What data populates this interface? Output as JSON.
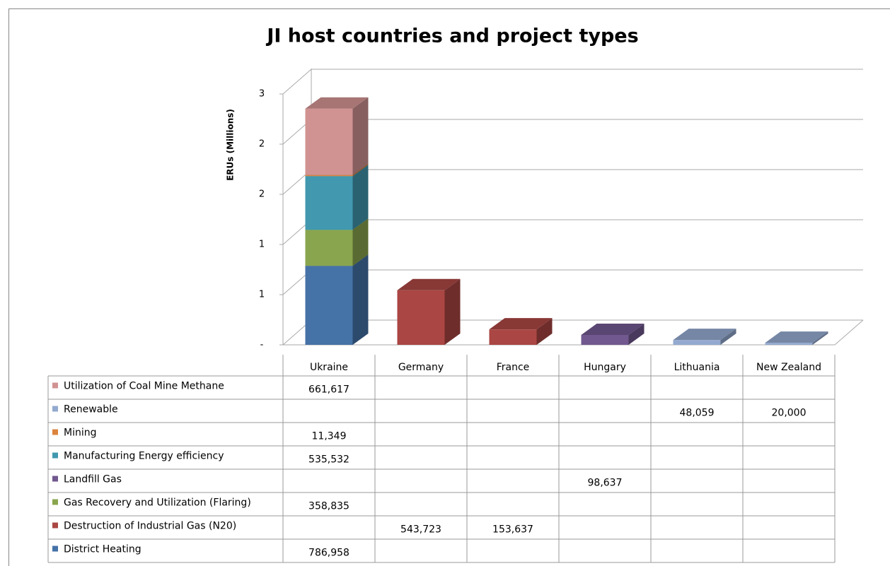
{
  "chart_data": {
    "type": "bar3d_stacked",
    "title": "JI host countries and project types",
    "y_label": "ERUs (Millions)",
    "categories": [
      "Ukraine",
      "Germany",
      "France",
      "Hungary",
      "Lithuania",
      "New Zealand"
    ],
    "ylim": [
      0,
      2.5
    ],
    "yticks": [
      {
        "value": 0,
        "label": "-"
      },
      {
        "value": 0.5,
        "label": "1"
      },
      {
        "value": 1,
        "label": "1"
      },
      {
        "value": 1.5,
        "label": "2"
      },
      {
        "value": 2,
        "label": "2"
      },
      {
        "value": 2.5,
        "label": "3"
      }
    ],
    "grid": true,
    "series": [
      {
        "name": "District Heating",
        "color": "#4572a7",
        "values": [
          0.786958,
          null,
          null,
          null,
          null,
          null
        ],
        "value_labels": [
          "786,958",
          null,
          null,
          null,
          null,
          null
        ]
      },
      {
        "name": "Destruction of Industrial Gas (N20)",
        "color": "#aa4643",
        "values": [
          null,
          0.543723,
          0.153637,
          null,
          null,
          null
        ],
        "value_labels": [
          null,
          "543,723",
          "153,637",
          null,
          null,
          null
        ]
      },
      {
        "name": "Gas Recovery and Utilization  (Flaring)",
        "color": "#89a54e",
        "values": [
          0.358835,
          null,
          null,
          null,
          null,
          null
        ],
        "value_labels": [
          "358,835",
          null,
          null,
          null,
          null,
          null
        ]
      },
      {
        "name": "Landfill Gas",
        "color": "#71588f",
        "values": [
          null,
          null,
          null,
          0.098637,
          null,
          null
        ],
        "value_labels": [
          null,
          null,
          null,
          "98,637",
          null,
          null
        ]
      },
      {
        "name": "Manufacturing Energy efficiency",
        "color": "#4198af",
        "values": [
          0.535532,
          null,
          null,
          null,
          null,
          null
        ],
        "value_labels": [
          "535,532",
          null,
          null,
          null,
          null,
          null
        ]
      },
      {
        "name": "Mining",
        "color": "#db843d",
        "values": [
          0.011349,
          null,
          null,
          null,
          null,
          null
        ],
        "value_labels": [
          "11,349",
          null,
          null,
          null,
          null,
          null
        ]
      },
      {
        "name": "Renewable",
        "color": "#93a9cf",
        "values": [
          null,
          null,
          null,
          null,
          0.048059,
          0.02
        ],
        "value_labels": [
          null,
          null,
          null,
          null,
          "48,059",
          "20,000"
        ]
      },
      {
        "name": "Utilization of Coal Mine Methane",
        "color": "#d09392",
        "values": [
          0.661617,
          null,
          null,
          null,
          null,
          null
        ],
        "value_labels": [
          "661,617",
          null,
          null,
          null,
          null,
          null
        ]
      }
    ]
  }
}
